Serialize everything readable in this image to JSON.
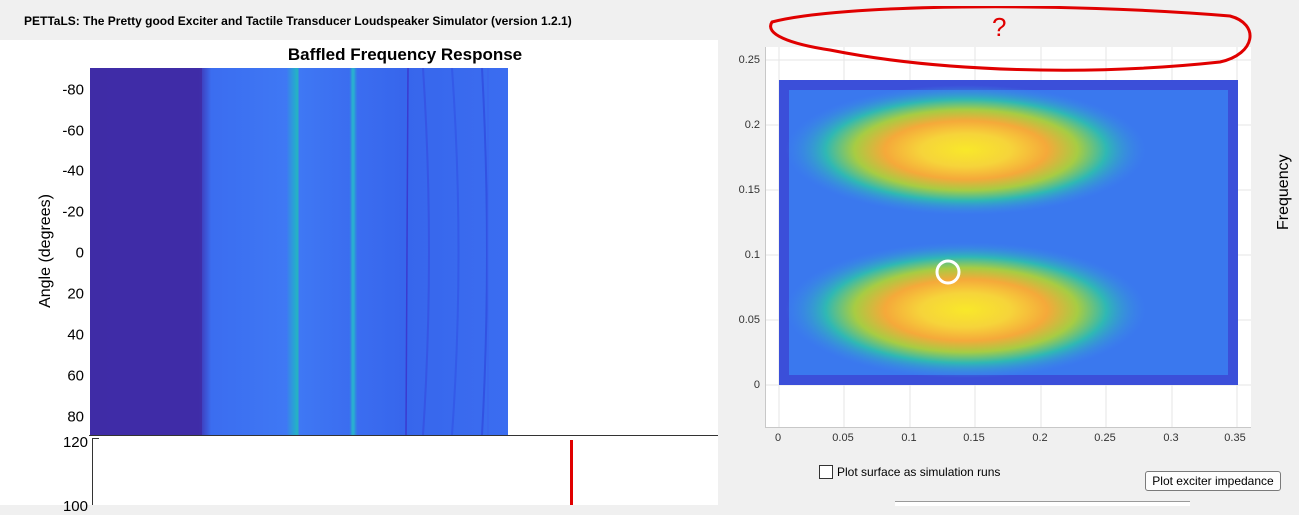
{
  "app": {
    "title": "PETTaLS: The Pretty good Exciter and Tactile Transducer Loudspeaker Simulator (version 1.2.1)"
  },
  "plot1": {
    "title": "Baffled Frequency Response",
    "ylabel": "Angle (degrees)",
    "yticks": [
      "-80",
      "-60",
      "-40",
      "-20",
      "0",
      "20",
      "40",
      "60",
      "80"
    ]
  },
  "plot2": {
    "yticks": [
      "120",
      "100"
    ]
  },
  "right_plot": {
    "xticks": [
      "0",
      "0.05",
      "0.1",
      "0.15",
      "0.2",
      "0.25",
      "0.3",
      "0.35"
    ],
    "yticks": [
      "0.25",
      "0.2",
      "0.15",
      "0.1",
      "0.05",
      "0"
    ],
    "annotation": "?"
  },
  "controls": {
    "checkbox_label": "Plot surface as simulation runs",
    "checkbox_checked": false,
    "impedance_button": "Plot exciter impedance",
    "side_label": "Frequency"
  },
  "colors": {
    "dark_blue": "#3f2ca6",
    "mid_blue": "#3b6df0",
    "cyan": "#22b3c8",
    "yellow": "#f8e82a",
    "orange": "#f5a93a",
    "annotation_red": "#e00000"
  }
}
